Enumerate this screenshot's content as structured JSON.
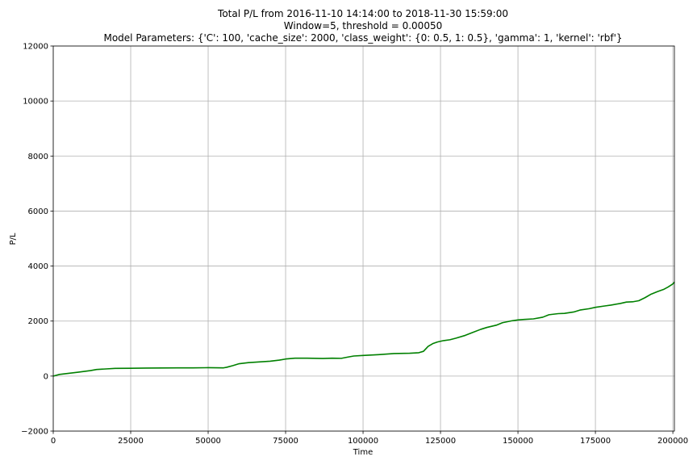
{
  "chart_data": {
    "type": "line",
    "title_lines": [
      "Total P/L from 2016-11-10 14:14:00 to 2018-11-30 15:59:00",
      "Window=5, threshold = 0.00050",
      "Model Parameters: {'C': 100, 'cache_size': 2000, 'class_weight': {0: 0.5, 1: 0.5}, 'gamma': 1, 'kernel': 'rbf'}"
    ],
    "xlabel": "Time",
    "ylabel": "P/L",
    "xlim": [
      0,
      200500
    ],
    "ylim": [
      -2000,
      12000
    ],
    "xticks": [
      0,
      25000,
      50000,
      75000,
      100000,
      125000,
      150000,
      175000,
      200000
    ],
    "xtick_labels": [
      "0",
      "25000",
      "50000",
      "75000",
      "100000",
      "125000",
      "150000",
      "175000",
      "200000"
    ],
    "yticks": [
      -2000,
      0,
      2000,
      4000,
      6000,
      8000,
      10000,
      12000
    ],
    "ytick_labels": [
      "−2000",
      "0",
      "2000",
      "4000",
      "6000",
      "8000",
      "10000",
      "12000"
    ],
    "grid": true,
    "series": [
      {
        "color": "#008000",
        "x": [
          0,
          2000,
          5000,
          8000,
          10000,
          12000,
          14000,
          17000,
          20000,
          25000,
          30000,
          35000,
          40000,
          45000,
          50000,
          55000,
          56000,
          58000,
          60000,
          63000,
          66000,
          70000,
          73000,
          75000,
          78000,
          82000,
          87000,
          90000,
          93000,
          95000,
          97000,
          100000,
          105000,
          110000,
          115000,
          118000,
          119500,
          121000,
          122500,
          124000,
          126000,
          128000,
          130000,
          133000,
          135000,
          138000,
          140000,
          143000,
          145000,
          148000,
          150000,
          152000,
          155000,
          158000,
          160000,
          163000,
          165000,
          168000,
          170000,
          173000,
          175000,
          178000,
          180000,
          183000,
          185000,
          187000,
          189000,
          191000,
          193000,
          195000,
          197000,
          198500,
          200000,
          200500
        ],
        "y": [
          0,
          60,
          100,
          140,
          170,
          200,
          240,
          260,
          280,
          285,
          290,
          295,
          300,
          300,
          305,
          300,
          320,
          380,
          450,
          490,
          510,
          540,
          580,
          620,
          650,
          650,
          640,
          650,
          645,
          690,
          730,
          750,
          780,
          820,
          830,
          850,
          900,
          1080,
          1180,
          1240,
          1290,
          1320,
          1380,
          1480,
          1570,
          1700,
          1770,
          1850,
          1940,
          2010,
          2040,
          2060,
          2080,
          2140,
          2230,
          2270,
          2280,
          2330,
          2400,
          2450,
          2500,
          2550,
          2580,
          2640,
          2690,
          2700,
          2740,
          2850,
          2980,
          3070,
          3150,
          3240,
          3350,
          3420
        ]
      }
    ]
  }
}
